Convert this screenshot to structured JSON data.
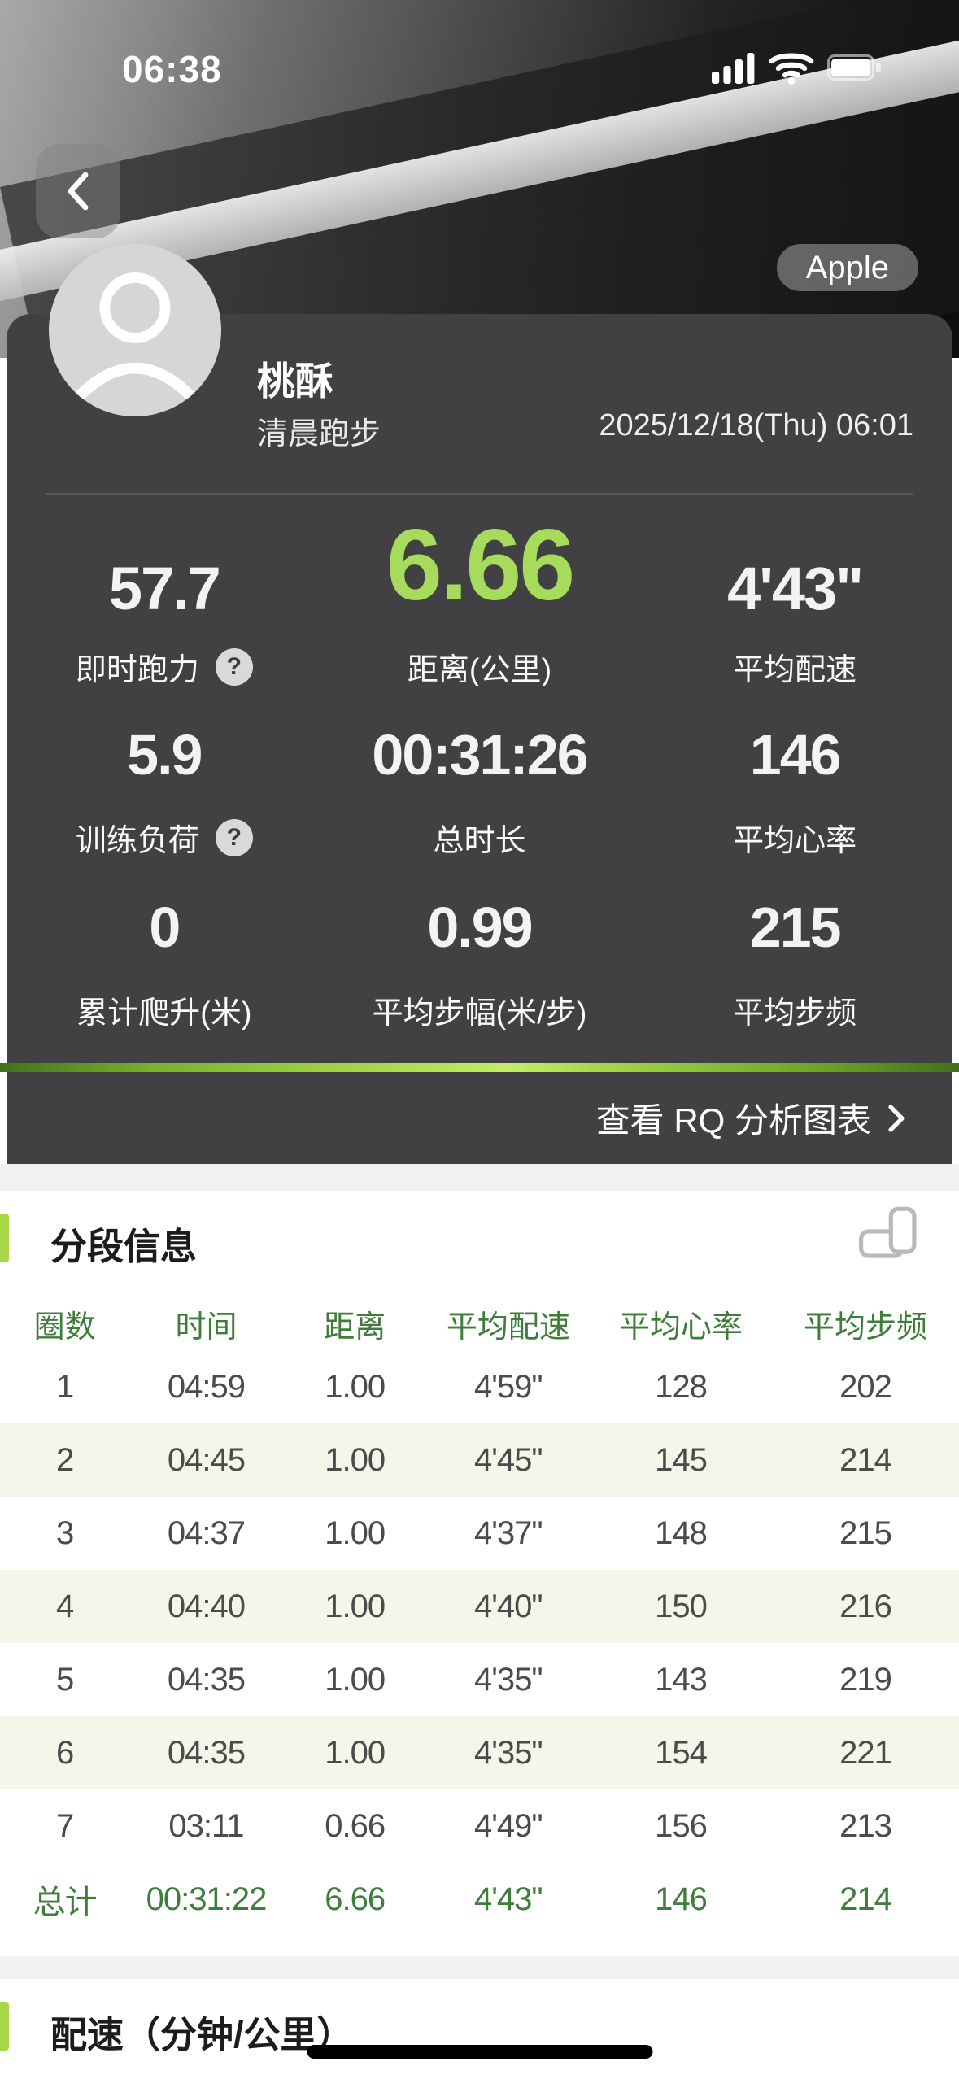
{
  "status": {
    "time": "06:38"
  },
  "header": {
    "badge": "Apple",
    "name": "桃酥",
    "subtitle": "清晨跑步",
    "datetime": "2025/12/18(Thu) 06:01"
  },
  "stats": {
    "help_icon": "?",
    "rows": [
      [
        {
          "value": "57.7",
          "label": "即时跑力",
          "help": true
        },
        {
          "value": "6.66",
          "label": "距离(公里)",
          "highlight": true
        },
        {
          "value": "4'43\"",
          "label": "平均配速"
        }
      ],
      [
        {
          "value": "5.9",
          "label": "训练负荷",
          "help": true
        },
        {
          "value": "00:31:26",
          "label": "总时长"
        },
        {
          "value": "146",
          "label": "平均心率"
        }
      ],
      [
        {
          "value": "0",
          "label": "累计爬升(米)"
        },
        {
          "value": "0.99",
          "label": "平均步幅(米/步)"
        },
        {
          "value": "215",
          "label": "平均步频"
        }
      ]
    ]
  },
  "rq": {
    "label": "查看 RQ 分析图表"
  },
  "laps": {
    "title": "分段信息",
    "columns": [
      "圈数",
      "时间",
      "距离",
      "平均配速",
      "平均心率",
      "平均步频"
    ],
    "rows": [
      [
        "1",
        "04:59",
        "1.00",
        "4'59\"",
        "128",
        "202"
      ],
      [
        "2",
        "04:45",
        "1.00",
        "4'45\"",
        "145",
        "214"
      ],
      [
        "3",
        "04:37",
        "1.00",
        "4'37\"",
        "148",
        "215"
      ],
      [
        "4",
        "04:40",
        "1.00",
        "4'40\"",
        "150",
        "216"
      ],
      [
        "5",
        "04:35",
        "1.00",
        "4'35\"",
        "143",
        "219"
      ],
      [
        "6",
        "04:35",
        "1.00",
        "4'35\"",
        "154",
        "221"
      ],
      [
        "7",
        "03:11",
        "0.66",
        "4'49\"",
        "156",
        "213"
      ]
    ],
    "total": [
      "总计",
      "00:31:22",
      "6.66",
      "4'43\"",
      "146",
      "214"
    ]
  },
  "pace": {
    "title": "配速（分钟/公里）"
  },
  "colors": {
    "highlight_green": "#a6db5b",
    "accent_green": "#a8d647",
    "table_green": "#3e7e3a",
    "dark_panel": "#414144",
    "row_tint": "#f3f6e8"
  }
}
